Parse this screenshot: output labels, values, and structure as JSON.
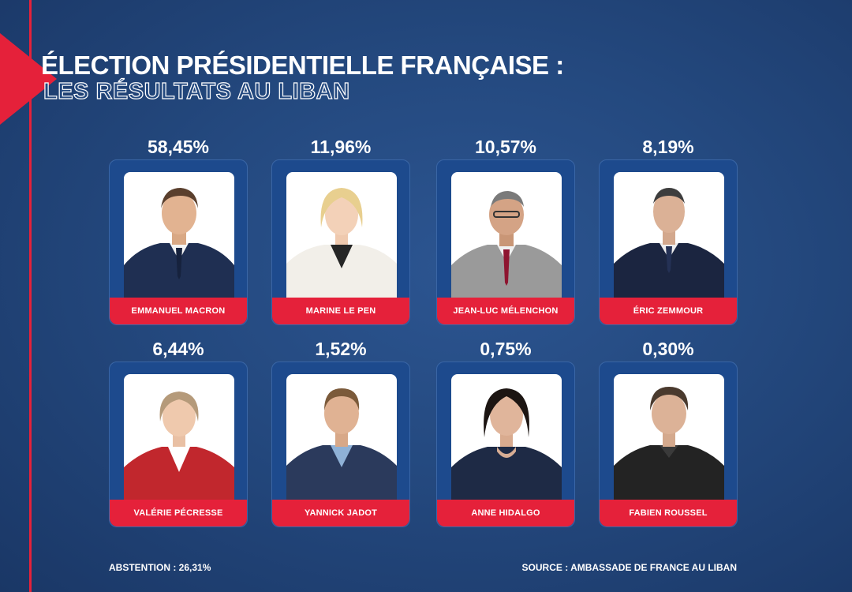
{
  "header": {
    "title": "ÉLECTION PRÉSIDENTIELLE FRANÇAISE :",
    "subtitle": "LES RÉSULTATS AU LIBAN"
  },
  "colors": {
    "background": "#24497f",
    "accent_red": "#e5213a",
    "card_blue": "#1d4a8d"
  },
  "candidates": [
    {
      "name": "EMMANUEL MACRON",
      "percent": "58,45%",
      "icon": "portrait-photo"
    },
    {
      "name": "MARINE LE PEN",
      "percent": "11,96%",
      "icon": "portrait-photo"
    },
    {
      "name": "JEAN-LUC MÉLENCHON",
      "percent": "10,57%",
      "icon": "portrait-photo"
    },
    {
      "name": "ÉRIC ZEMMOUR",
      "percent": "8,19%",
      "icon": "portrait-photo"
    },
    {
      "name": "VALÉRIE PÉCRESSE",
      "percent": "6,44%",
      "icon": "portrait-photo"
    },
    {
      "name": "YANNICK JADOT",
      "percent": "1,52%",
      "icon": "portrait-photo"
    },
    {
      "name": "ANNE HIDALGO",
      "percent": "0,75%",
      "icon": "portrait-photo"
    },
    {
      "name": "FABIEN ROUSSEL",
      "percent": "0,30%",
      "icon": "portrait-photo"
    }
  ],
  "footer": {
    "abstention": "ABSTENTION : 26,31%",
    "source": "SOURCE : AMBASSADE DE FRANCE AU LIBAN"
  }
}
